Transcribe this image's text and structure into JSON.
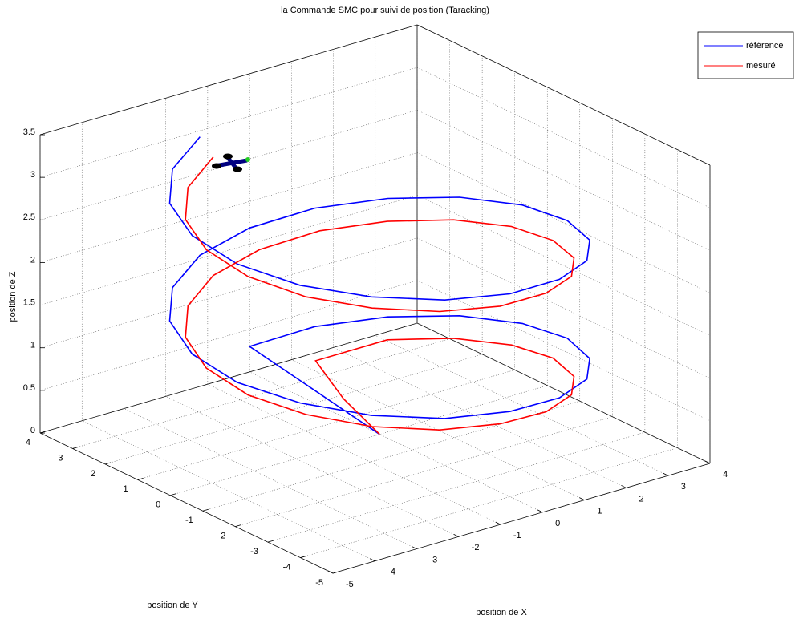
{
  "chart_data": {
    "type": "line3d",
    "title": "la Commande SMC pour suivi de position (Taracking)",
    "xlabel": "position de X",
    "ylabel": "position de Y",
    "zlabel": "position de Z",
    "xlim": [
      -5,
      4
    ],
    "ylim": [
      -5,
      4
    ],
    "zlim": [
      0,
      3.5
    ],
    "xticks": [
      -5,
      -4,
      -3,
      -2,
      -1,
      0,
      1,
      2,
      3,
      4
    ],
    "yticks": [
      -5,
      -4,
      -3,
      -2,
      -1,
      0,
      1,
      2,
      3,
      4
    ],
    "zticks": [
      0,
      0.5,
      1,
      1.5,
      2,
      2.5,
      3,
      3.5
    ],
    "grid": true,
    "legend": "upper right",
    "series": [
      {
        "name": "référence",
        "color": "#0000ff",
        "x": [
          0,
          0,
          1.37,
          2.57,
          3.46,
          3.94,
          3.94,
          3.46,
          2.57,
          1.37,
          0,
          -1.37,
          -2.57,
          -3.46,
          -3.94,
          -3.94,
          -3.46,
          -2.57,
          -1.37,
          0,
          1.37,
          2.57,
          3.46,
          3.94,
          3.94,
          3.46,
          2.57,
          1.37,
          0,
          -1.37,
          -2.57,
          -3.46,
          -3.94,
          -3.94,
          -3.46,
          -2.57,
          -1.37
        ],
        "y": [
          0,
          4,
          3.76,
          3.06,
          2,
          0.69,
          -0.69,
          -2,
          -3.06,
          -3.76,
          -4,
          -3.76,
          -3.06,
          -2,
          -0.69,
          0.69,
          2,
          3.06,
          3.76,
          4,
          3.76,
          3.06,
          2,
          0.69,
          -0.69,
          -2,
          -3.06,
          -3.76,
          -4,
          -3.76,
          -3.06,
          -2,
          -0.69,
          0.69,
          2,
          3.06,
          3.76
        ],
        "z": [
          0,
          0.3,
          0.38,
          0.45,
          0.53,
          0.61,
          0.69,
          0.76,
          0.84,
          0.92,
          1.0,
          1.07,
          1.15,
          1.23,
          1.3,
          1.38,
          1.46,
          1.53,
          1.61,
          1.69,
          1.77,
          1.84,
          1.92,
          2.0,
          2.07,
          2.15,
          2.23,
          2.31,
          2.38,
          2.46,
          2.54,
          2.61,
          2.69,
          2.77,
          2.84,
          2.92,
          3.0
        ]
      },
      {
        "name": "mesuré",
        "color": "#ff0000",
        "x": [
          0,
          0.3,
          0.8,
          2.38,
          3.2,
          3.64,
          3.64,
          3.2,
          2.38,
          1.27,
          0,
          -1.27,
          -2.38,
          -3.2,
          -3.64,
          -3.64,
          -3.2,
          -2.38,
          -1.27,
          0,
          1.27,
          2.38,
          3.2,
          3.64,
          3.64,
          3.2,
          2.38,
          1.27,
          0,
          -1.27,
          -2.38,
          -3.2,
          -3.64,
          -3.64,
          -3.2,
          -2.38,
          -1.27
        ],
        "y": [
          0,
          1.5,
          3.0,
          2.83,
          1.85,
          0.64,
          -0.64,
          -1.85,
          -2.83,
          -3.48,
          -3.7,
          -3.48,
          -2.83,
          -1.85,
          -0.64,
          0.64,
          1.85,
          2.83,
          3.48,
          3.7,
          3.48,
          2.83,
          1.85,
          0.64,
          -0.64,
          -1.85,
          -2.83,
          -3.48,
          -3.7,
          -3.48,
          -2.83,
          -1.85,
          -0.64,
          0.64,
          1.85,
          2.83,
          3.48
        ],
        "z": [
          0,
          0.1,
          0.2,
          0.25,
          0.33,
          0.41,
          0.49,
          0.56,
          0.64,
          0.72,
          0.8,
          0.87,
          0.95,
          1.03,
          1.1,
          1.18,
          1.26,
          1.33,
          1.41,
          1.49,
          1.57,
          1.64,
          1.72,
          1.8,
          1.87,
          1.95,
          2.03,
          2.11,
          2.18,
          2.26,
          2.34,
          2.41,
          2.49,
          2.57,
          2.64,
          2.72,
          2.8
        ]
      }
    ]
  }
}
